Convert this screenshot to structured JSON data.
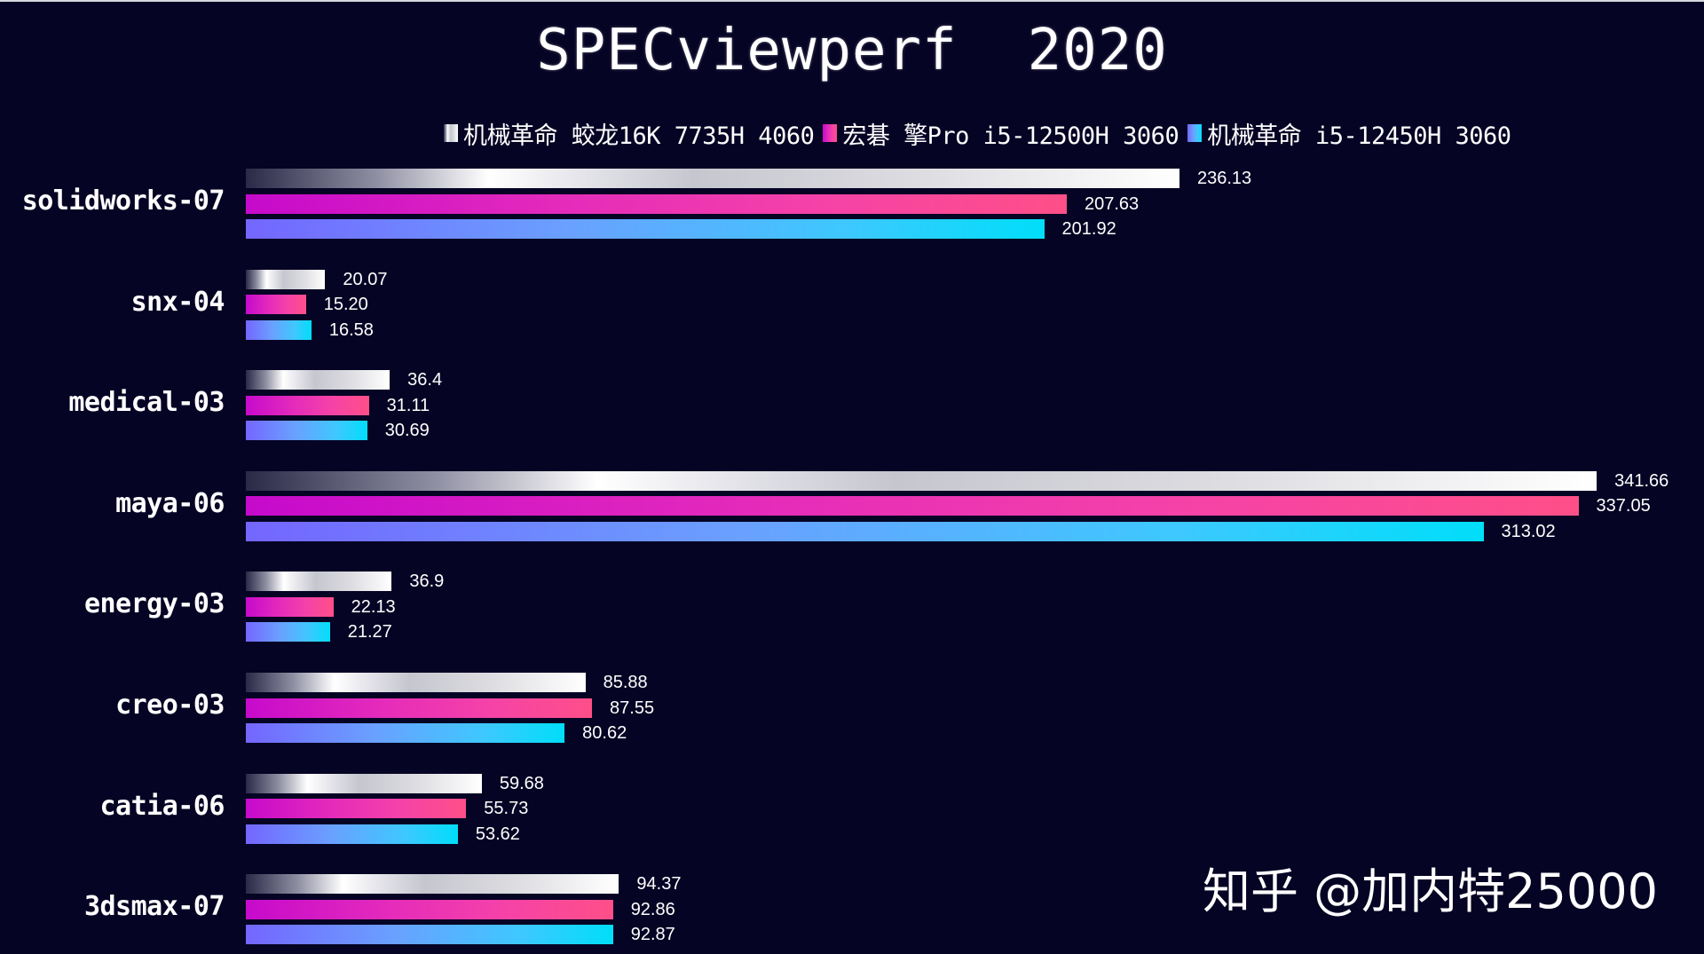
{
  "title": "SPECviewperf  2020",
  "legend": [
    {
      "label": "机械革命 蛟龙16K 7735H 4060",
      "swatch": "white-gradient"
    },
    {
      "label": "宏碁 擎Pro i5-12500H 3060",
      "swatch": "pink-gradient"
    },
    {
      "label": "机械革命 i5-12450H 3060",
      "swatch": "blue-gradient"
    }
  ],
  "watermark": "知乎 @加内特25000",
  "colors": {
    "background": "#060424",
    "series1_start": "#2a2a48",
    "series1_end": "#ffffff",
    "series2_start": "#c60acc",
    "series2_end": "#ff4f88",
    "series3_start": "#7466ff",
    "series3_end": "#00defa"
  },
  "groups": [
    {
      "label": "solidworks-07",
      "values": [
        "236.13",
        "207.63",
        "201.92"
      ]
    },
    {
      "label": "snx-04",
      "values": [
        "20.07",
        "15.20",
        "16.58"
      ]
    },
    {
      "label": "medical-03",
      "values": [
        "36.4",
        "31.11",
        "30.69"
      ]
    },
    {
      "label": "maya-06",
      "values": [
        "341.66",
        "337.05",
        "313.02"
      ]
    },
    {
      "label": "energy-03",
      "values": [
        "36.9",
        "22.13",
        "21.27"
      ]
    },
    {
      "label": "creo-03",
      "values": [
        "85.88",
        "87.55",
        "80.62"
      ]
    },
    {
      "label": "catia-06",
      "values": [
        "59.68",
        "55.73",
        "53.62"
      ]
    },
    {
      "label": "3dsmax-07",
      "values": [
        "94.37",
        "92.86",
        "92.87"
      ]
    }
  ],
  "chart_data": {
    "type": "bar",
    "orientation": "horizontal",
    "title": "SPECviewperf  2020",
    "categories": [
      "solidworks-07",
      "snx-04",
      "medical-03",
      "maya-06",
      "energy-03",
      "creo-03",
      "catia-06",
      "3dsmax-07"
    ],
    "series": [
      {
        "name": "机械革命 蛟龙16K 7735H 4060",
        "values": [
          236.13,
          20.07,
          36.4,
          341.66,
          36.9,
          85.88,
          59.68,
          94.37
        ]
      },
      {
        "name": "宏碁 擎Pro i5-12500H 3060",
        "values": [
          207.63,
          15.2,
          31.11,
          337.05,
          22.13,
          87.55,
          55.73,
          92.86
        ]
      },
      {
        "name": "机械革命 i5-12450H 3060",
        "values": [
          201.92,
          16.58,
          30.69,
          313.02,
          21.27,
          80.62,
          53.62,
          92.87
        ]
      }
    ],
    "xlabel": "",
    "ylabel": "",
    "xlim": [
      0,
      350
    ],
    "grid": false,
    "data_labels": true,
    "legend_position": "top"
  }
}
